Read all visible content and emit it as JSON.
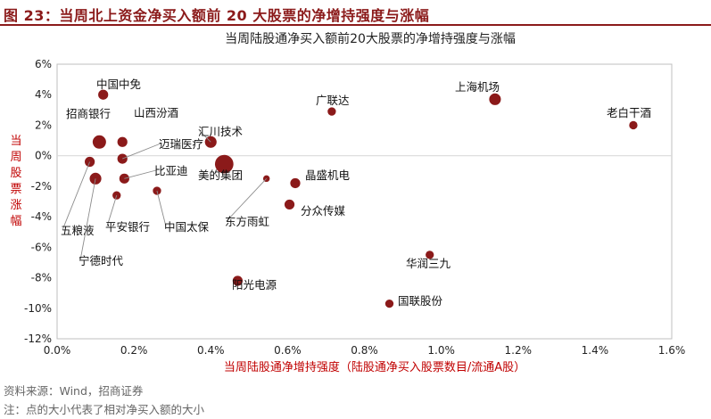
{
  "figure": {
    "title": "图 23：当周北上资金净买入额前 20 大股票的净增持强度与涨幅",
    "source": "资料来源：Wind，招商证券",
    "note": "注：点的大小代表了相对净买入额的大小"
  },
  "colors": {
    "accent": "#8b1a1a",
    "marker": "#8b1a1a",
    "axis_label": "#c00000",
    "grid": "#d9d9d9"
  },
  "chart_data": {
    "type": "scatter",
    "title": "当周陆股通净买入额前20大股票的净增持强度与涨幅",
    "xlabel": "当周陆股通净增持强度（陆股通净买入股票数目/流通A股）",
    "ylabel": "当周股票涨幅",
    "xlim": [
      0,
      1.6
    ],
    "ylim": [
      -12,
      6
    ],
    "xticks": [
      0,
      0.2,
      0.4,
      0.6,
      0.8,
      1.0,
      1.2,
      1.4,
      1.6
    ],
    "yticks": [
      6,
      4,
      2,
      0,
      -2,
      -4,
      -6,
      -8,
      -10,
      -12
    ],
    "xtick_labels": [
      "0.0%",
      "0.2%",
      "0.4%",
      "0.6%",
      "0.8%",
      "1.0%",
      "1.2%",
      "1.4%",
      "1.6%"
    ],
    "ytick_labels": [
      "6%",
      "4%",
      "2%",
      "0%",
      "-2%",
      "-4%",
      "-6%",
      "-8%",
      "-10%",
      "-12%"
    ],
    "grid": "horizontal-zero-line",
    "points": [
      {
        "name": "中国中免",
        "x": 0.12,
        "y": 4.0,
        "size": 2
      },
      {
        "name": "招商银行",
        "x": 0.11,
        "y": 0.9,
        "size": 3
      },
      {
        "name": "山西汾酒",
        "x": 0.17,
        "y": 0.9,
        "size": 2
      },
      {
        "name": "迈瑞医疗",
        "x": 0.17,
        "y": -0.2,
        "size": 2
      },
      {
        "name": "汇川技术",
        "x": 0.4,
        "y": 0.9,
        "size": 2.5
      },
      {
        "name": "五粮液",
        "x": 0.085,
        "y": -0.4,
        "size": 2
      },
      {
        "name": "宁德时代",
        "x": 0.1,
        "y": -1.5,
        "size": 2.5
      },
      {
        "name": "平安银行",
        "x": 0.155,
        "y": -2.6,
        "size": 1.5
      },
      {
        "name": "比亚迪",
        "x": 0.175,
        "y": -1.5,
        "size": 2
      },
      {
        "name": "中国太保",
        "x": 0.26,
        "y": -2.3,
        "size": 1.5
      },
      {
        "name": "美的集团",
        "x": 0.435,
        "y": -0.55,
        "size": 4.5
      },
      {
        "name": "东方雨虹",
        "x": 0.545,
        "y": -1.5,
        "size": 1
      },
      {
        "name": "晶盛机电",
        "x": 0.62,
        "y": -1.8,
        "size": 2
      },
      {
        "name": "分众传媒",
        "x": 0.605,
        "y": -3.2,
        "size": 2
      },
      {
        "name": "广联达",
        "x": 0.715,
        "y": 2.9,
        "size": 1.5
      },
      {
        "name": "阳光电源",
        "x": 0.47,
        "y": -8.2,
        "size": 2
      },
      {
        "name": "上海机场",
        "x": 1.14,
        "y": 3.7,
        "size": 2.5
      },
      {
        "name": "老白干酒",
        "x": 1.5,
        "y": 2.0,
        "size": 1.5
      },
      {
        "name": "华润三九",
        "x": 0.97,
        "y": -6.5,
        "size": 1.5
      },
      {
        "name": "国联股份",
        "x": 0.865,
        "y": -9.7,
        "size": 1.5
      }
    ]
  }
}
